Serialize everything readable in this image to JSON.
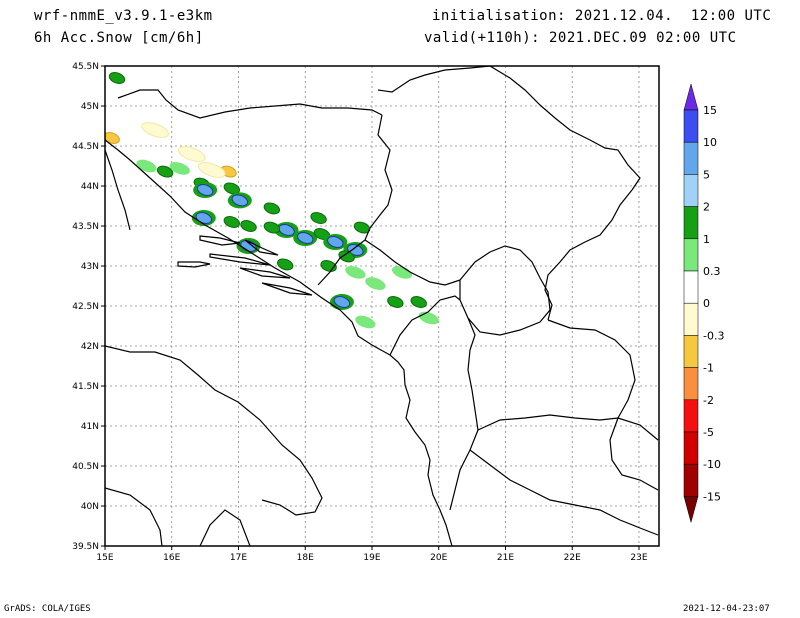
{
  "header": {
    "model": "wrf-nmmE_v3.9.1-e3km",
    "variable": "6h Acc.Snow [cm/6h]",
    "initialisation": "initialisation: 2021.12.04.  12:00 UTC",
    "valid": "valid(+110h): 2021.DEC.09 02:00 UTC"
  },
  "footer": {
    "credit": "GrADS: COLA/IGES",
    "timestamp": "2021-12-04-23:07"
  },
  "map": {
    "lon_range": [
      15,
      23.3
    ],
    "lat_range": [
      39.5,
      45.5
    ],
    "grid": "dotted",
    "lon_labels": [
      "15E",
      "16E",
      "17E",
      "18E",
      "19E",
      "20E",
      "21E",
      "22E",
      "23E"
    ],
    "lat_labels": [
      "39.5N",
      "40N",
      "40.5N",
      "41N",
      "41.5N",
      "42N",
      "42.5N",
      "43N",
      "43.5N",
      "44N",
      "44.5N",
      "45N",
      "45.5N"
    ]
  },
  "legend": {
    "orientation": "vertical",
    "placement": "right",
    "labels": [
      "15",
      "10",
      "5",
      "2",
      "1",
      "0.3",
      "0",
      "-0.3",
      "-1",
      "-2",
      "-5",
      "-10",
      "-15"
    ],
    "colors": [
      "#6a2ae8",
      "#3c4ef0",
      "#62a6ec",
      "#a0d2f8",
      "#16a016",
      "#7ae87a",
      "#ffffff",
      "#fffad0",
      "#f5c840",
      "#f89040",
      "#f41010",
      "#d00000",
      "#a00000",
      "#780000"
    ]
  },
  "snow_patches": [
    {
      "lon": 15.18,
      "lat": 45.35,
      "cls": "green"
    },
    {
      "lon": 15.62,
      "lat": 44.25,
      "cls": "lightgreen"
    },
    {
      "lon": 15.9,
      "lat": 44.18,
      "cls": "green"
    },
    {
      "lon": 16.12,
      "lat": 44.22,
      "cls": "lightgreen"
    },
    {
      "lon": 16.45,
      "lat": 44.03,
      "cls": "green"
    },
    {
      "lon": 16.5,
      "lat": 43.95,
      "cls": "lightblue"
    },
    {
      "lon": 16.9,
      "lat": 43.97,
      "cls": "green"
    },
    {
      "lon": 17.02,
      "lat": 43.82,
      "cls": "lightblue"
    },
    {
      "lon": 16.48,
      "lat": 43.6,
      "cls": "lightblue"
    },
    {
      "lon": 16.9,
      "lat": 43.55,
      "cls": "green"
    },
    {
      "lon": 17.15,
      "lat": 43.5,
      "cls": "green"
    },
    {
      "lon": 17.5,
      "lat": 43.72,
      "cls": "green"
    },
    {
      "lon": 17.72,
      "lat": 43.45,
      "cls": "lightblue"
    },
    {
      "lon": 17.5,
      "lat": 43.48,
      "cls": "green"
    },
    {
      "lon": 18.0,
      "lat": 43.35,
      "cls": "lightblue"
    },
    {
      "lon": 18.25,
      "lat": 43.4,
      "cls": "green"
    },
    {
      "lon": 18.45,
      "lat": 43.3,
      "cls": "lightblue"
    },
    {
      "lon": 18.2,
      "lat": 43.6,
      "cls": "green"
    },
    {
      "lon": 18.75,
      "lat": 43.2,
      "cls": "lightblue"
    },
    {
      "lon": 17.7,
      "lat": 43.02,
      "cls": "green"
    },
    {
      "lon": 17.15,
      "lat": 43.25,
      "cls": "lightblue"
    },
    {
      "lon": 18.35,
      "lat": 43.0,
      "cls": "green"
    },
    {
      "lon": 18.75,
      "lat": 42.92,
      "cls": "lightgreen"
    },
    {
      "lon": 19.05,
      "lat": 42.78,
      "cls": "lightgreen"
    },
    {
      "lon": 19.45,
      "lat": 42.92,
      "cls": "lightgreen"
    },
    {
      "lon": 19.35,
      "lat": 42.55,
      "cls": "green"
    },
    {
      "lon": 19.7,
      "lat": 42.55,
      "cls": "green"
    },
    {
      "lon": 18.55,
      "lat": 42.55,
      "cls": "lightblue"
    },
    {
      "lon": 18.9,
      "lat": 42.3,
      "cls": "lightgreen"
    },
    {
      "lon": 19.85,
      "lat": 42.35,
      "cls": "lightgreen"
    },
    {
      "lon": 18.85,
      "lat": 43.48,
      "cls": "green"
    },
    {
      "lon": 18.62,
      "lat": 43.12,
      "cls": "green"
    },
    {
      "lon": 16.3,
      "lat": 44.4,
      "cls": "yellow"
    },
    {
      "lon": 16.85,
      "lat": 44.18,
      "cls": "orange"
    },
    {
      "lon": 15.1,
      "lat": 44.6,
      "cls": "orange"
    },
    {
      "lon": 15.75,
      "lat": 44.7,
      "cls": "yellow"
    },
    {
      "lon": 16.6,
      "lat": 44.2,
      "cls": "yellow"
    }
  ]
}
